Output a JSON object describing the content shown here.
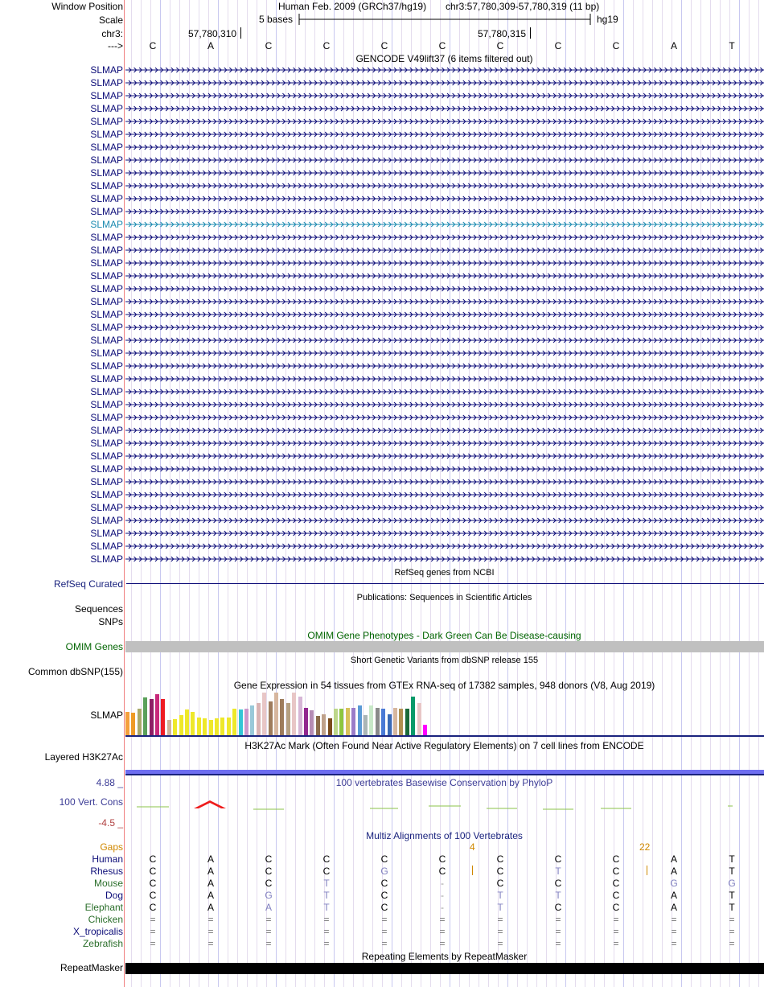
{
  "header": {
    "window_position_label": "Window Position",
    "assembly": "Human Feb. 2009 (GRCh37/hg19)",
    "position": "chr3:57,780,309-57,780,319 (11 bp)",
    "scale_label": "Scale",
    "scale_text": "5 bases",
    "scale_db": "hg19",
    "chrom_label": "chr3:",
    "coord_left": "57,780,310",
    "coord_right": "57,780,315",
    "strand_label": "--->"
  },
  "bases": [
    "C",
    "A",
    "C",
    "C",
    "C",
    "C",
    "C",
    "C",
    "C",
    "A",
    "T"
  ],
  "gencode": {
    "title": "GENCODE V49lift37 (6 items filtered out)",
    "items": [
      "SLMAP",
      "SLMAP",
      "SLMAP",
      "SLMAP",
      "SLMAP",
      "SLMAP",
      "SLMAP",
      "SLMAP",
      "SLMAP",
      "SLMAP",
      "SLMAP",
      "SLMAP",
      "SLMAP",
      "SLMAP",
      "SLMAP",
      "SLMAP",
      "SLMAP",
      "SLMAP",
      "SLMAP",
      "SLMAP",
      "SLMAP",
      "SLMAP",
      "SLMAP",
      "SLMAP",
      "SLMAP",
      "SLMAP",
      "SLMAP",
      "SLMAP",
      "SLMAP",
      "SLMAP",
      "SLMAP",
      "SLMAP",
      "SLMAP",
      "SLMAP",
      "SLMAP",
      "SLMAP",
      "SLMAP",
      "SLMAP",
      "SLMAP"
    ],
    "highlight_index": 12,
    "gene_color": "#0c0c78",
    "highlight_color": "#1a8ab0"
  },
  "refseq": {
    "title": "RefSeq genes from NCBI",
    "label": "RefSeq Curated"
  },
  "publications": {
    "title": "Publications: Sequences in Scientific Articles",
    "label1": "Sequences",
    "label2": "SNPs"
  },
  "omim": {
    "title": "OMIM Gene Phenotypes - Dark Green Can Be Disease-causing",
    "label": "OMIM Genes",
    "color": "#006400"
  },
  "dbsnp": {
    "title": "Short Genetic Variants from dbSNP release 155",
    "label": "Common dbSNP(155)"
  },
  "gtex": {
    "title": "Gene Expression in 54 tissues from GTEx RNA-seq of 17382 samples, 948 donors (V8, Aug 2019)",
    "label": "SLMAP",
    "levels": [
      0.55,
      0.52,
      0.62,
      0.88,
      0.85,
      0.97,
      0.85,
      0.35,
      0.38,
      0.47,
      0.6,
      0.55,
      0.42,
      0.4,
      0.35,
      0.4,
      0.42,
      0.42,
      0.62,
      0.6,
      0.62,
      0.7,
      0.75,
      1.0,
      0.8,
      1.0,
      0.85,
      0.75,
      1.0,
      0.9,
      0.65,
      0.58,
      0.45,
      0.5,
      0.4,
      0.62,
      0.62,
      0.65,
      0.65,
      0.7,
      0.48,
      0.7,
      0.65,
      0.62,
      0.5,
      0.65,
      0.62,
      0.62,
      0.9,
      0.75,
      0.25
    ],
    "colors": [
      "#f4a03c",
      "#ee9a25",
      "#a9a96a",
      "#5aa05a",
      "#8e1e64",
      "#c8287a",
      "#ee1c24",
      "#cfb39a",
      "#eee82a",
      "#eee82a",
      "#eee82a",
      "#eee82a",
      "#eee82a",
      "#eee82a",
      "#eee82a",
      "#eee82a",
      "#eee82a",
      "#eee82a",
      "#eee82a",
      "#33c6d6",
      "#cc99cc",
      "#99c9d9",
      "#d9b4b4",
      "#e8c6c6",
      "#9e7c5c",
      "#d6b69e",
      "#9e7c5c",
      "#b5a081",
      "#e8c6c6",
      "#d6b6d6",
      "#92278f",
      "#b58bb4",
      "#8b6b4b",
      "#bfa18a",
      "#7b4b1b",
      "#bdd78a",
      "#8dc63f",
      "#d8c25a",
      "#9a7cc9",
      "#5a9ad6",
      "#aab6b6",
      "#c8e8c8",
      "#8a8a8a",
      "#4a7ad6",
      "#3a6ab6",
      "#d6b69e",
      "#b09050",
      "#1a6a3a",
      "#0a9a6a",
      "#e8c6c6",
      "#ff00ff"
    ]
  },
  "h3k27ac": {
    "title": "H3K27Ac Mark (Often Found Near Active Regulatory Elements) on 7 cell lines from ENCODE",
    "label": "Layered H3K27Ac",
    "color": "#6e6ef0"
  },
  "phylop": {
    "title": "100 vertebrates Basewise Conservation by PhyloP",
    "label": "100 Vert. Cons",
    "max": "4.88 _",
    "min": "-4.5 _",
    "title_color": "#3c3c96",
    "label_color": "#3c3c96",
    "min_color": "#b04040"
  },
  "multiz": {
    "title": "Multiz Alignments of 100 Vertebrates",
    "gaps_label": "Gaps",
    "gap_values": [
      "4",
      "22"
    ],
    "species": [
      {
        "name": "Human",
        "bases": [
          "C",
          "A",
          "C",
          "C",
          "C",
          "C",
          "C",
          "C",
          "C",
          "A",
          "T"
        ],
        "color": "#0c0c78"
      },
      {
        "name": "Rhesus",
        "bases": [
          "C",
          "A",
          "C",
          "C",
          "G",
          "C",
          "C",
          "T",
          "C",
          "A",
          "T"
        ],
        "color": "#0c0c78"
      },
      {
        "name": "Mouse",
        "bases": [
          "C",
          "A",
          "C",
          "T",
          "C",
          "-",
          "C",
          "C",
          "C",
          "G",
          "G"
        ],
        "color": "#2a6e2a"
      },
      {
        "name": "Dog",
        "bases": [
          "C",
          "A",
          "G",
          "T",
          "C",
          "-",
          "T",
          "T",
          "C",
          "A",
          "T"
        ],
        "color": "#0c0c78"
      },
      {
        "name": "Elephant",
        "bases": [
          "C",
          "A",
          "A",
          "T",
          "C",
          "-",
          "T",
          "C",
          "C",
          "A",
          "T"
        ],
        "color": "#2a6e2a"
      },
      {
        "name": "Chicken",
        "bases": [
          "=",
          "=",
          "=",
          "=",
          "=",
          "=",
          "=",
          "=",
          "=",
          "=",
          "="
        ],
        "color": "#2a6e2a"
      },
      {
        "name": "X_tropicalis",
        "bases": [
          "=",
          "=",
          "=",
          "=",
          "=",
          "=",
          "=",
          "=",
          "=",
          "=",
          "="
        ],
        "color": "#0c0c78"
      },
      {
        "name": "Zebrafish",
        "bases": [
          "=",
          "=",
          "=",
          "=",
          "=",
          "=",
          "=",
          "=",
          "=",
          "=",
          "="
        ],
        "color": "#2a6e2a"
      }
    ]
  },
  "repeatmasker": {
    "title": "Repeating Elements by RepeatMasker",
    "label": "RepeatMasker"
  }
}
